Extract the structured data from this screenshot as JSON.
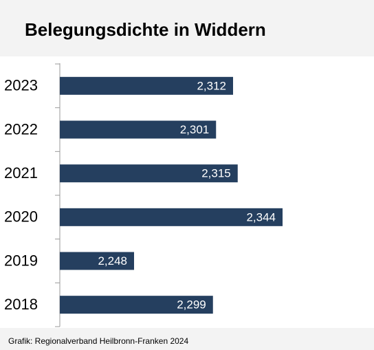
{
  "chart_data": {
    "type": "hbar",
    "title": "Belegungsdichte in Widdern",
    "categories": [
      "2023",
      "2022",
      "2021",
      "2020",
      "2019",
      "2018"
    ],
    "values": [
      2.312,
      2.301,
      2.315,
      2.344,
      2.248,
      2.299
    ],
    "value_labels": [
      "2,312",
      "2,301",
      "2,315",
      "2,344",
      "2,248",
      "2,299"
    ],
    "color": "#253f5f",
    "xlim": [
      2.2,
      2.4
    ],
    "source": "Grafik: Regionalverband Heilbronn-Franken 2024"
  }
}
